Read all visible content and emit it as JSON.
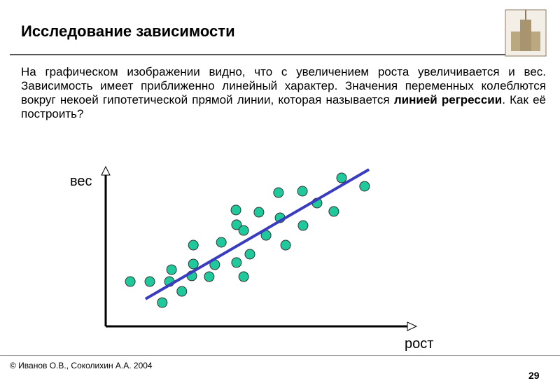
{
  "header": {
    "title": "Исследование зависимости"
  },
  "body": {
    "text_before": "На графическом изображении видно, что с увеличением роста увеличивается и вес. Зависимость имеет приближенно линейный характер. Значения переменных колеблются вокруг некоей гипотетической прямой линии, которая называется ",
    "bold": "линией регрессии",
    "text_after": ". Как её построить?"
  },
  "chart_data": {
    "type": "scatter",
    "x_label": "рост",
    "y_label": "вес",
    "xlim": [
      0,
      100
    ],
    "ylim": [
      0,
      100
    ],
    "series": [
      {
        "color": "#1fc99b",
        "x": [
          7.9,
          14.2,
          18.2,
          21.2,
          20.5,
          24.5,
          28.2,
          28.2,
          27.7,
          33.3,
          35.1,
          37.2,
          41.9,
          42.1,
          44.4,
          42.1,
          44.4,
          46.4,
          49.3,
          51.6,
          55.6,
          56.1,
          57.9,
          63.3,
          63.5,
          68.0,
          73.4,
          75.9,
          83.3
        ],
        "values": [
          28.3,
          28.3,
          15.0,
          35.8,
          28.3,
          22.1,
          51.3,
          39.4,
          31.9,
          31.4,
          38.9,
          53.1,
          73.5,
          64.2,
          60.6,
          40.3,
          31.4,
          45.6,
          72.1,
          57.5,
          84.5,
          68.6,
          51.3,
          85.4,
          63.7,
          77.9,
          72.6,
          93.8,
          88.5
        ]
      }
    ],
    "regression_line": {
      "color": "#3a3cc0",
      "x": [
        12.8,
        84.7
      ],
      "values": [
        17.3,
        99.1
      ]
    }
  },
  "footer": {
    "copyright": "© Иванов О.В., Соколихин А.А. 2004",
    "page_number": "29"
  }
}
